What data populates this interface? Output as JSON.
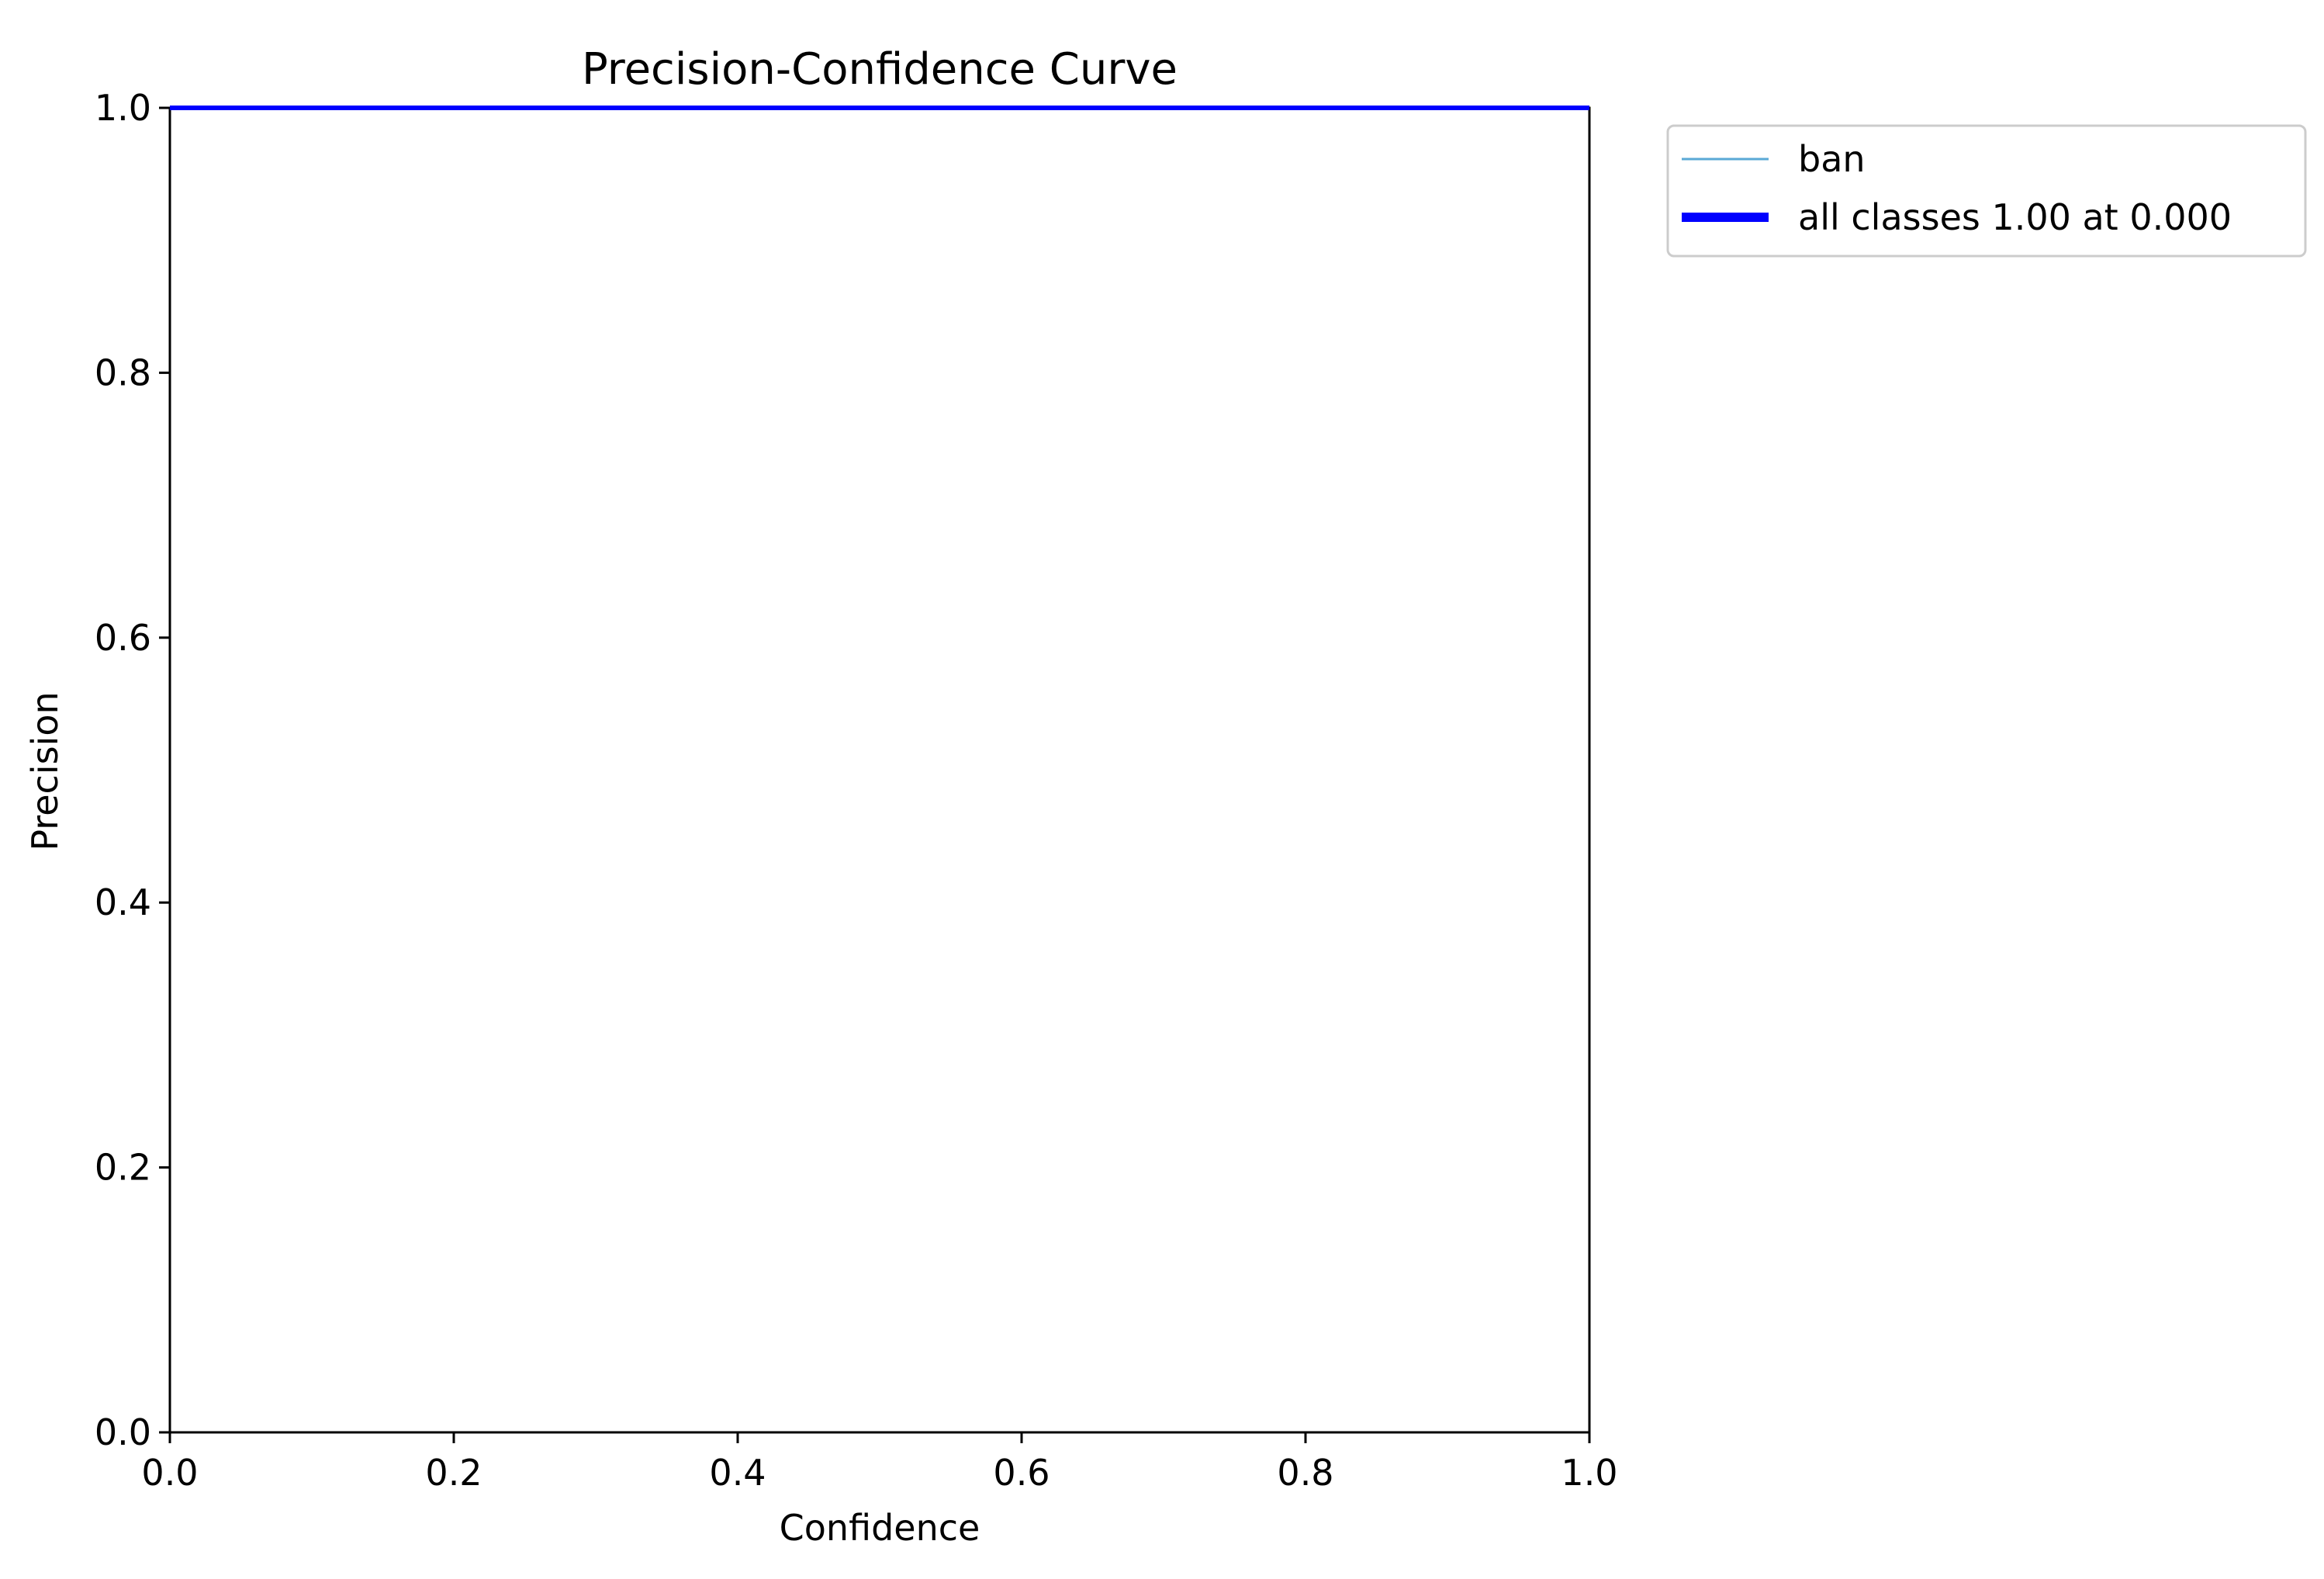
{
  "chart_data": {
    "type": "line",
    "title": "Precision-Confidence Curve",
    "xlabel": "Confidence",
    "ylabel": "Precision",
    "xlim": [
      0.0,
      1.0
    ],
    "ylim": [
      0.0,
      1.0
    ],
    "xticks": [
      "0.0",
      "0.2",
      "0.4",
      "0.6",
      "0.8",
      "1.0"
    ],
    "yticks": [
      "0.0",
      "0.2",
      "0.4",
      "0.6",
      "0.8",
      "1.0"
    ],
    "grid": false,
    "legend_position": "outside-top-right",
    "series": [
      {
        "name": "ban",
        "color": "#5aa9d6",
        "x": [
          0.0,
          1.0
        ],
        "y": [
          1.0,
          1.0
        ]
      },
      {
        "name": "all classes 1.00 at 0.000",
        "color": "#0000ff",
        "x": [
          0.0,
          1.0
        ],
        "y": [
          1.0,
          1.0
        ]
      }
    ]
  }
}
